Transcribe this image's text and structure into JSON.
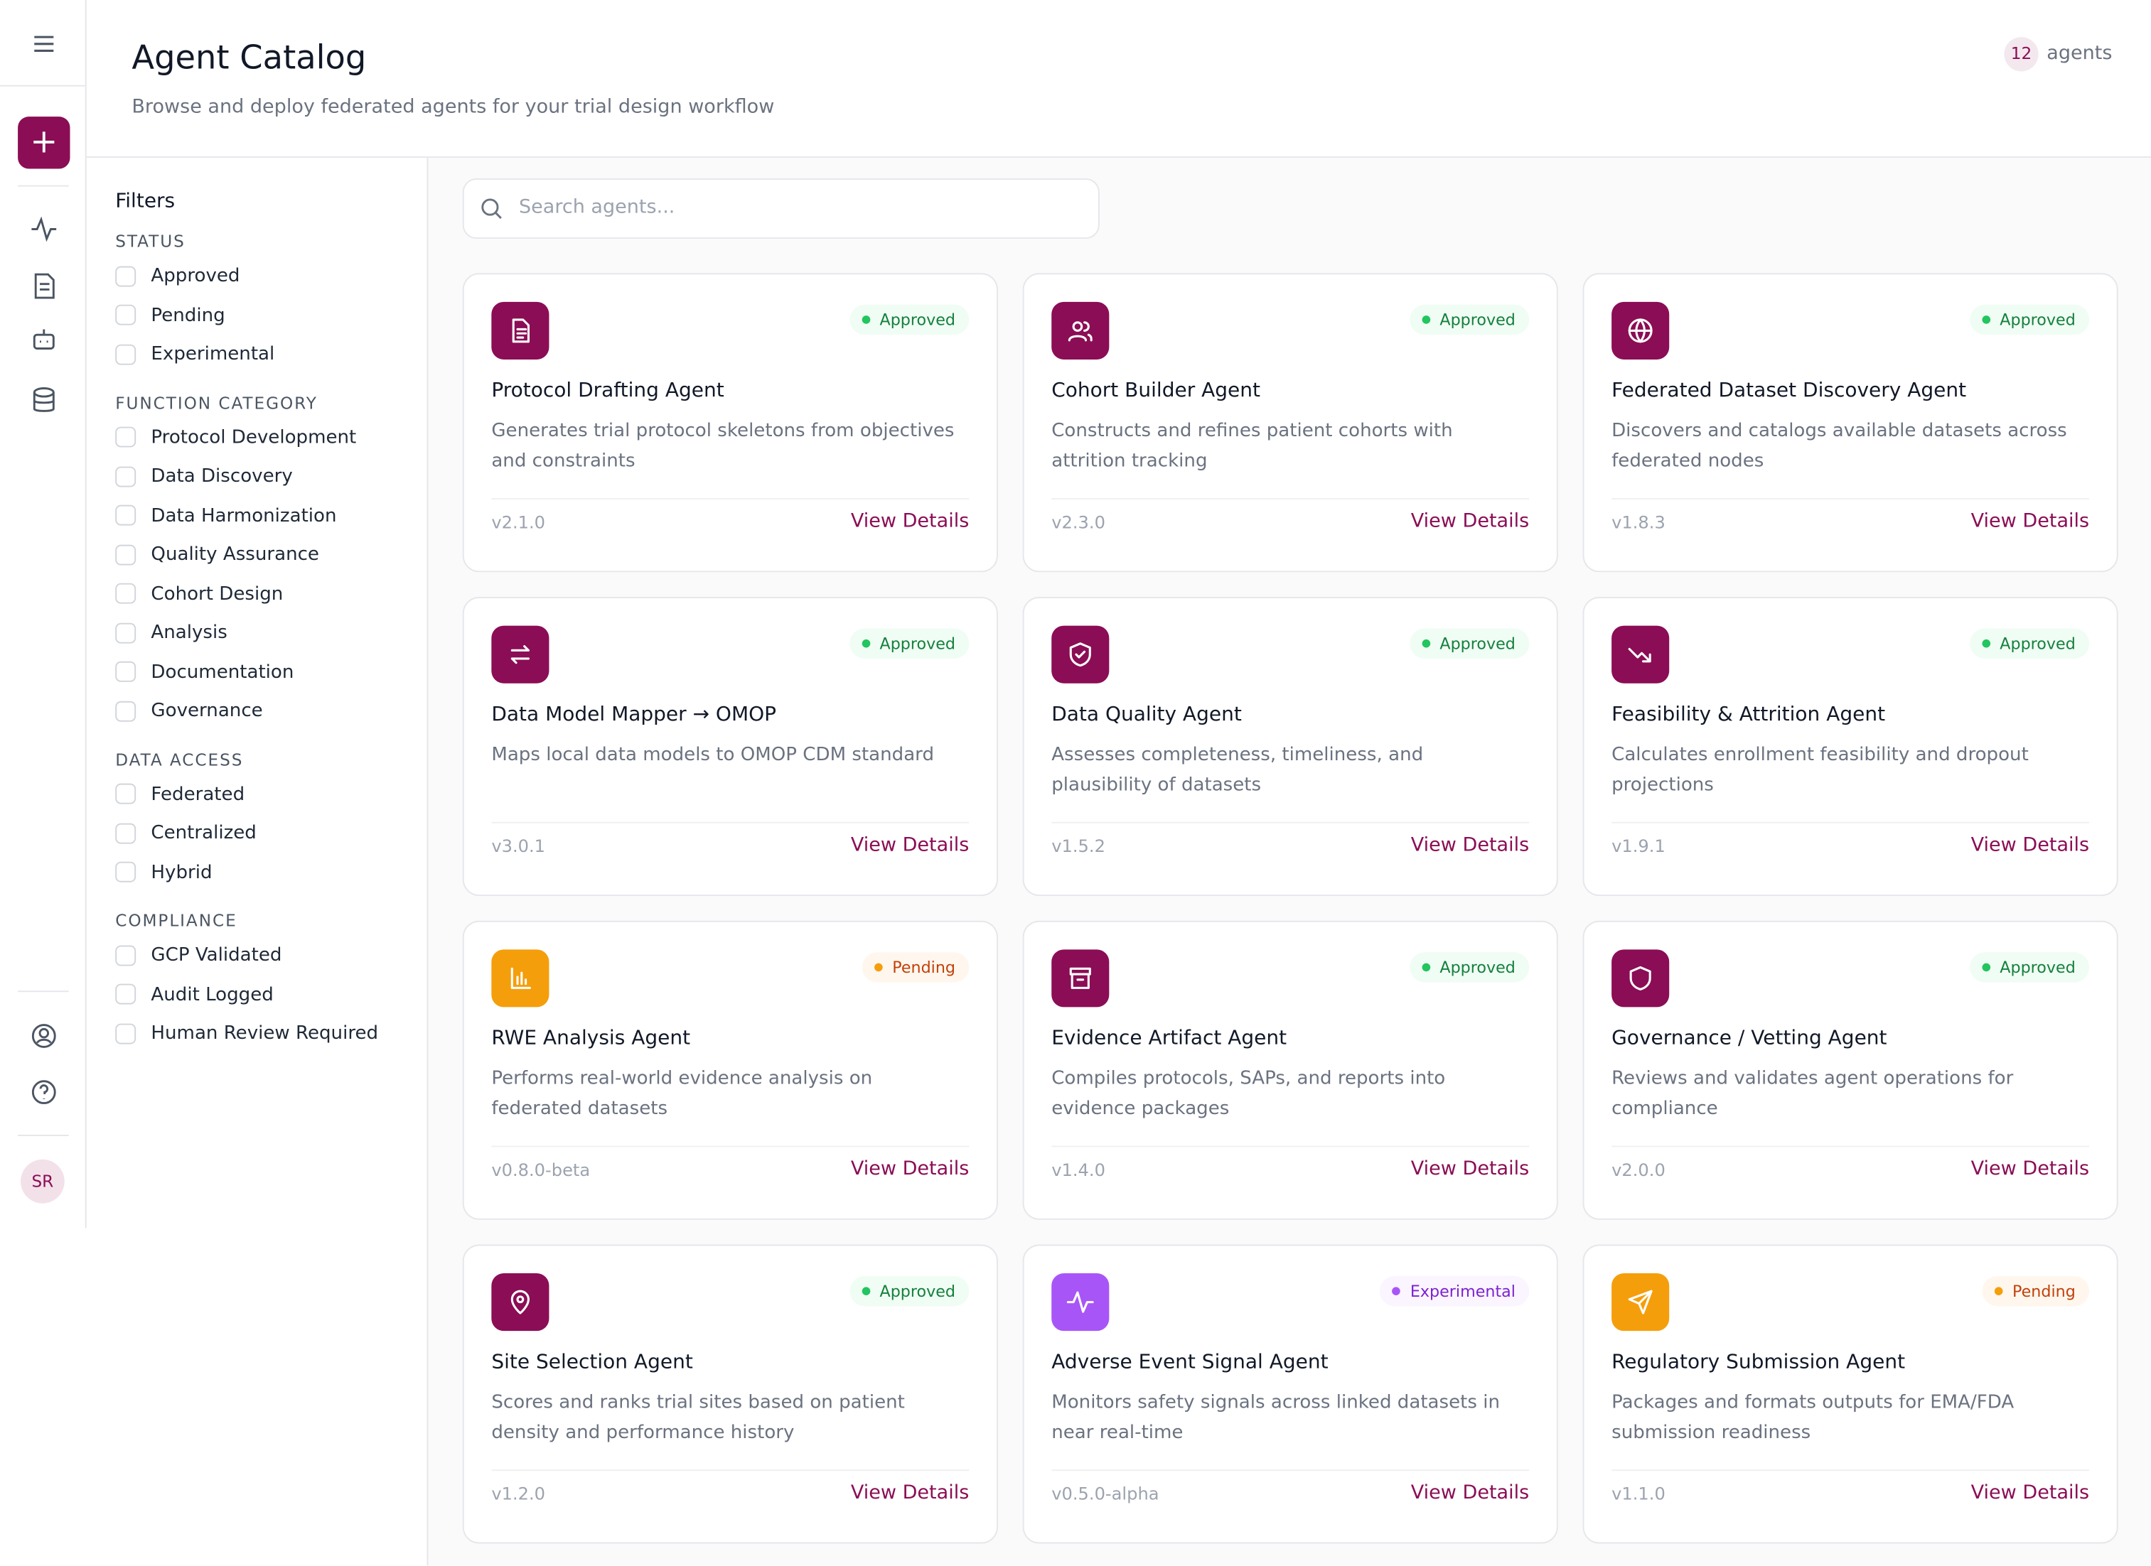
{
  "header": {
    "title": "Agent Catalog",
    "subtitle": "Browse and deploy federated agents for your trial design workflow",
    "count": "12",
    "count_label": "agents"
  },
  "sidebar": {
    "avatar": "SR"
  },
  "filters": {
    "title": "Filters",
    "groups": [
      {
        "label": "STATUS",
        "options": [
          "Approved",
          "Pending",
          "Experimental"
        ]
      },
      {
        "label": "FUNCTION CATEGORY",
        "options": [
          "Protocol Development",
          "Data Discovery",
          "Data Harmonization",
          "Quality Assurance",
          "Cohort Design",
          "Analysis",
          "Documentation",
          "Governance"
        ]
      },
      {
        "label": "DATA ACCESS",
        "options": [
          "Federated",
          "Centralized",
          "Hybrid"
        ]
      },
      {
        "label": "COMPLIANCE",
        "options": [
          "GCP Validated",
          "Audit Logged",
          "Human Review Required"
        ]
      }
    ]
  },
  "search": {
    "placeholder": "Search agents..."
  },
  "card_action": "View Details",
  "agents": [
    {
      "name": "Protocol Drafting Agent",
      "status": "Approved",
      "description": "Generates trial protocol skeletons from objectives and constraints",
      "version": "v2.1.0"
    },
    {
      "name": "Cohort Builder Agent",
      "status": "Approved",
      "description": "Constructs and refines patient cohorts with attrition tracking",
      "version": "v2.3.0"
    },
    {
      "name": "Federated Dataset Discovery Agent",
      "status": "Approved",
      "description": "Discovers and catalogs available datasets across federated nodes",
      "version": "v1.8.3"
    },
    {
      "name": "Data Model Mapper → OMOP",
      "status": "Approved",
      "description": "Maps local data models to OMOP CDM standard",
      "version": "v3.0.1"
    },
    {
      "name": "Data Quality Agent",
      "status": "Approved",
      "description": "Assesses completeness, timeliness, and plausibility of datasets",
      "version": "v1.5.2"
    },
    {
      "name": "Feasibility & Attrition Agent",
      "status": "Approved",
      "description": "Calculates enrollment feasibility and dropout projections",
      "version": "v1.9.1"
    },
    {
      "name": "RWE Analysis Agent",
      "status": "Pending",
      "description": "Performs real-world evidence analysis on federated datasets",
      "version": "v0.8.0-beta"
    },
    {
      "name": "Evidence Artifact Agent",
      "status": "Approved",
      "description": "Compiles protocols, SAPs, and reports into evidence packages",
      "version": "v1.4.0"
    },
    {
      "name": "Governance / Vetting Agent",
      "status": "Approved",
      "description": "Reviews and validates agent operations for compliance",
      "version": "v2.0.0"
    },
    {
      "name": "Site Selection Agent",
      "status": "Approved",
      "description": "Scores and ranks trial sites based on patient density and performance history",
      "version": "v1.2.0"
    },
    {
      "name": "Adverse Event Signal Agent",
      "status": "Experimental",
      "description": "Monitors safety signals across linked datasets in near real-time",
      "version": "v0.5.0-alpha"
    },
    {
      "name": "Regulatory Submission Agent",
      "status": "Pending",
      "description": "Packages and formats outputs for EMA/FDA submission readiness",
      "version": "v1.1.0"
    }
  ]
}
